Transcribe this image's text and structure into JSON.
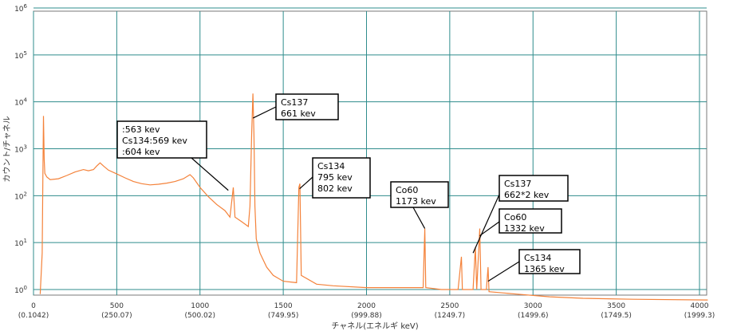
{
  "colors": {
    "series": "#f4823a",
    "grid": "#2f8c8c",
    "axis": "#7a7a7a",
    "callout_border": "#000000"
  },
  "chart_data": {
    "type": "line",
    "xlabel": "チャネル(エネルギ keV)",
    "ylabel": "カウント/チャネル",
    "xlim": [
      0,
      4096
    ],
    "ylim": [
      0.6,
      1000000
    ],
    "y_scale": "log",
    "grid": true,
    "x_ticks": [
      {
        "value": 0,
        "label": "0",
        "sub": "(0.1042)"
      },
      {
        "value": 500,
        "label": "500",
        "sub": "(250.07)"
      },
      {
        "value": 1000,
        "label": "1000",
        "sub": "(500.02)"
      },
      {
        "value": 1500,
        "label": "1500",
        "sub": "(749.95)"
      },
      {
        "value": 2000,
        "label": "2000",
        "sub": "(999.88)"
      },
      {
        "value": 2500,
        "label": "2500",
        "sub": "(1249.7)"
      },
      {
        "value": 3000,
        "label": "3000",
        "sub": "(1499.6)"
      },
      {
        "value": 3500,
        "label": "3500",
        "sub": "(1749.5)"
      },
      {
        "value": 4000,
        "label": "4000",
        "sub": "(1999.3)"
      }
    ],
    "y_ticks": [
      {
        "value": 1,
        "base": "10",
        "exp": "0"
      },
      {
        "value": 10,
        "base": "10",
        "exp": "1"
      },
      {
        "value": 100,
        "base": "10",
        "exp": "2"
      },
      {
        "value": 1000,
        "base": "10",
        "exp": "3"
      },
      {
        "value": 10000,
        "base": "10",
        "exp": "4"
      },
      {
        "value": 100000,
        "base": "10",
        "exp": "5"
      },
      {
        "value": 1000000,
        "base": "10",
        "exp": "6"
      }
    ],
    "series": [
      {
        "points": [
          [
            40,
            0.8
          ],
          [
            52,
            6
          ],
          [
            56,
            200
          ],
          [
            60,
            5000
          ],
          [
            64,
            600
          ],
          [
            68,
            300
          ],
          [
            80,
            250
          ],
          [
            100,
            220
          ],
          [
            150,
            230
          ],
          [
            200,
            270
          ],
          [
            250,
            320
          ],
          [
            300,
            360
          ],
          [
            330,
            340
          ],
          [
            360,
            360
          ],
          [
            380,
            430
          ],
          [
            400,
            500
          ],
          [
            420,
            430
          ],
          [
            450,
            350
          ],
          [
            500,
            290
          ],
          [
            550,
            240
          ],
          [
            600,
            200
          ],
          [
            650,
            180
          ],
          [
            700,
            170
          ],
          [
            750,
            175
          ],
          [
            800,
            185
          ],
          [
            850,
            200
          ],
          [
            900,
            230
          ],
          [
            940,
            280
          ],
          [
            960,
            240
          ],
          [
            1000,
            150
          ],
          [
            1050,
            95
          ],
          [
            1100,
            65
          ],
          [
            1150,
            48
          ],
          [
            1180,
            35
          ],
          [
            1200,
            150
          ],
          [
            1210,
            35
          ],
          [
            1250,
            28
          ],
          [
            1290,
            22
          ],
          [
            1300,
            60
          ],
          [
            1310,
            2000
          ],
          [
            1318,
            15000
          ],
          [
            1324,
            2000
          ],
          [
            1330,
            60
          ],
          [
            1338,
            12
          ],
          [
            1360,
            6
          ],
          [
            1400,
            3
          ],
          [
            1440,
            2
          ],
          [
            1500,
            1.5
          ],
          [
            1580,
            1.4
          ],
          [
            1594,
            150
          ],
          [
            1600,
            180
          ],
          [
            1608,
            2
          ],
          [
            1700,
            1.3
          ],
          [
            1800,
            1.2
          ],
          [
            2000,
            1.1
          ],
          [
            2200,
            1.1
          ],
          [
            2340,
            1.1
          ],
          [
            2350,
            20
          ],
          [
            2356,
            1.1
          ],
          [
            2450,
            1
          ],
          [
            2550,
            1
          ],
          [
            2570,
            5
          ],
          [
            2576,
            1
          ],
          [
            2640,
            1
          ],
          [
            2654,
            8
          ],
          [
            2662,
            1
          ],
          [
            2680,
            20
          ],
          [
            2688,
            1
          ],
          [
            2720,
            1
          ],
          [
            2730,
            3
          ],
          [
            2736,
            0.9
          ],
          [
            2900,
            0.8
          ],
          [
            3100,
            0.7
          ],
          [
            3300,
            0.65
          ],
          [
            3600,
            0.62
          ],
          [
            4050,
            0.6
          ]
        ]
      }
    ],
    "annotations": [
      {
        "lines": [
          ":563 kev",
          "Cs134:569 kev",
          ":604 kev"
        ],
        "x": 1170,
        "y": 130
      },
      {
        "lines": [
          "Cs137",
          "661 kev"
        ],
        "x": 1318,
        "y": 4500
      },
      {
        "lines": [
          "Cs134",
          "795 kev",
          "802 kev"
        ],
        "x": 1598,
        "y": 140
      },
      {
        "lines": [
          "Co60",
          "1173 kev"
        ],
        "x": 2350,
        "y": 20
      },
      {
        "lines": [
          "Cs137",
          "662*2 kev"
        ],
        "x": 2640,
        "y": 6
      },
      {
        "lines": [
          "Co60",
          "1332 kev"
        ],
        "x": 2680,
        "y": 14
      },
      {
        "lines": [
          "Cs134",
          "1365 kev"
        ],
        "x": 2730,
        "y": 1.5
      }
    ]
  }
}
